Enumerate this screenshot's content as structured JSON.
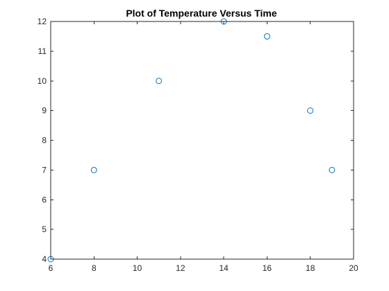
{
  "chart_data": {
    "type": "scatter",
    "title": "Plot of Temperature Versus Time",
    "xlabel": "",
    "ylabel": "",
    "xlim": [
      6,
      20
    ],
    "ylim": [
      4,
      12
    ],
    "x_ticks": [
      6,
      8,
      10,
      12,
      14,
      16,
      18,
      20
    ],
    "y_ticks": [
      4,
      5,
      6,
      7,
      8,
      9,
      10,
      11,
      12
    ],
    "grid": false,
    "marker": "open-circle",
    "marker_color": "#0072BD",
    "series": [
      {
        "points": [
          {
            "x": 6,
            "y": 4
          },
          {
            "x": 8,
            "y": 7
          },
          {
            "x": 11,
            "y": 10
          },
          {
            "x": 14,
            "y": 12
          },
          {
            "x": 16,
            "y": 11.5
          },
          {
            "x": 18,
            "y": 9
          },
          {
            "x": 19,
            "y": 7
          }
        ]
      }
    ]
  }
}
